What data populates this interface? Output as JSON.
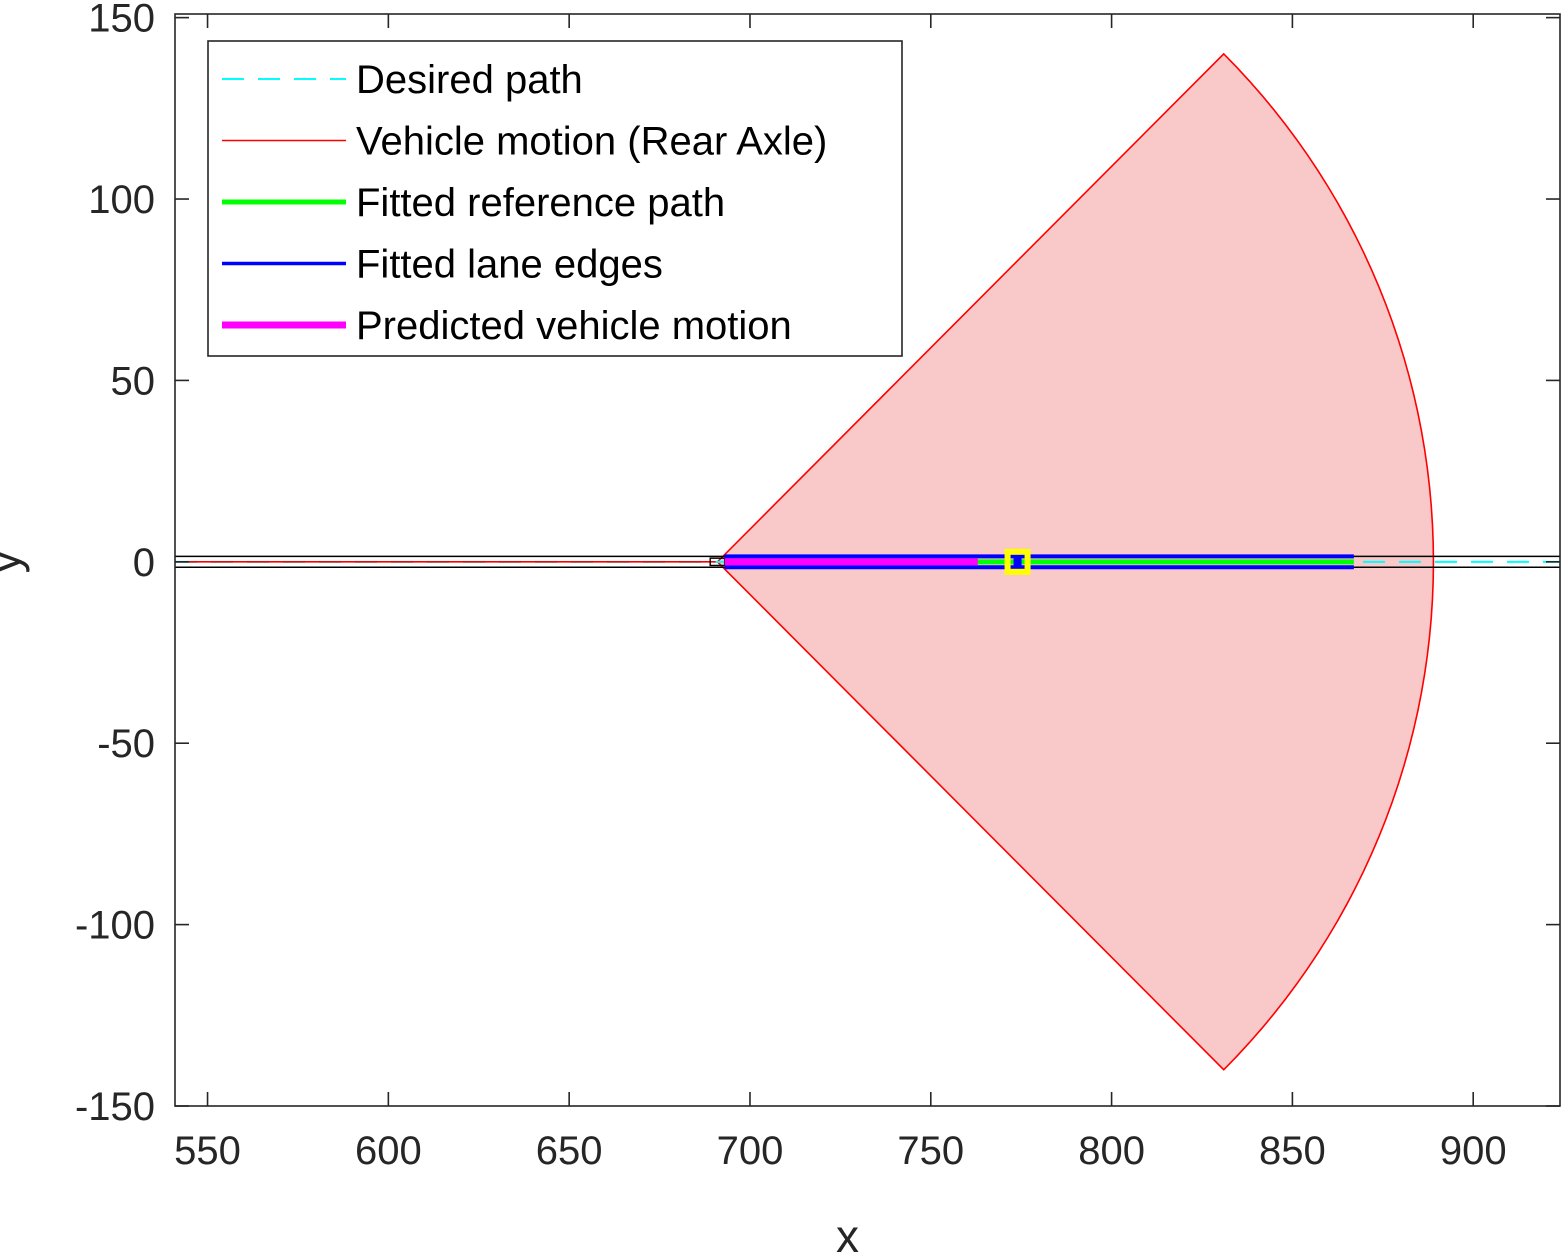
{
  "chart_data": {
    "type": "line",
    "title": "",
    "xlabel": "x",
    "ylabel": "y",
    "xlim": [
      541,
      924
    ],
    "ylim": [
      -150,
      151
    ],
    "xticks": [
      550,
      600,
      650,
      700,
      750,
      800,
      850,
      900
    ],
    "yticks": [
      -150,
      -100,
      -50,
      0,
      50,
      100,
      150
    ],
    "grid": false,
    "legend_position": "top-left",
    "legend": [
      {
        "label": "Desired path",
        "color": "#00ffff",
        "style": "dashed"
      },
      {
        "label": "Vehicle motion (Rear Axle)",
        "color": "#ff0000",
        "style": "solid"
      },
      {
        "label": "Fitted reference path",
        "color": "#00ff00",
        "style": "solid-thick"
      },
      {
        "label": "Fitted lane edges",
        "color": "#0000ff",
        "style": "solid"
      },
      {
        "label": "Predicted vehicle motion",
        "color": "#ff00ff",
        "style": "solid-thick"
      }
    ],
    "series": [
      {
        "name": "Desired path",
        "color": "#00ffff",
        "x": [
          541,
          924
        ],
        "y": [
          0,
          0
        ]
      },
      {
        "name": "Vehicle motion (Rear Axle)",
        "color": "#ff0000",
        "x": [
          541,
          690.5
        ],
        "y": [
          0,
          0
        ]
      },
      {
        "name": "Fitted reference path",
        "color": "#00ff00",
        "x": [
          693,
          867
        ],
        "y": [
          0,
          0
        ]
      },
      {
        "name": "Fitted lane edges",
        "color": "#0000ff",
        "x": [
          693,
          867
        ],
        "y_upper": 1.5,
        "y_lower": -1.5
      },
      {
        "name": "Predicted vehicle motion",
        "color": "#ff00ff",
        "x": [
          693,
          763
        ],
        "y": [
          0,
          0
        ]
      }
    ],
    "road_edges": {
      "color": "#000000",
      "y": [
        1.5,
        -1.5
      ],
      "x": [
        541,
        924
      ]
    },
    "sensor_fan": {
      "fill": "#f9c8c8",
      "stroke": "#ff0000",
      "apex": [
        691,
        0
      ],
      "radius": 198,
      "half_angle_deg": 45
    },
    "marker": {
      "x": 774,
      "y": 0,
      "outer_color": "#ffff00",
      "inner_color": "#0000ff"
    }
  }
}
